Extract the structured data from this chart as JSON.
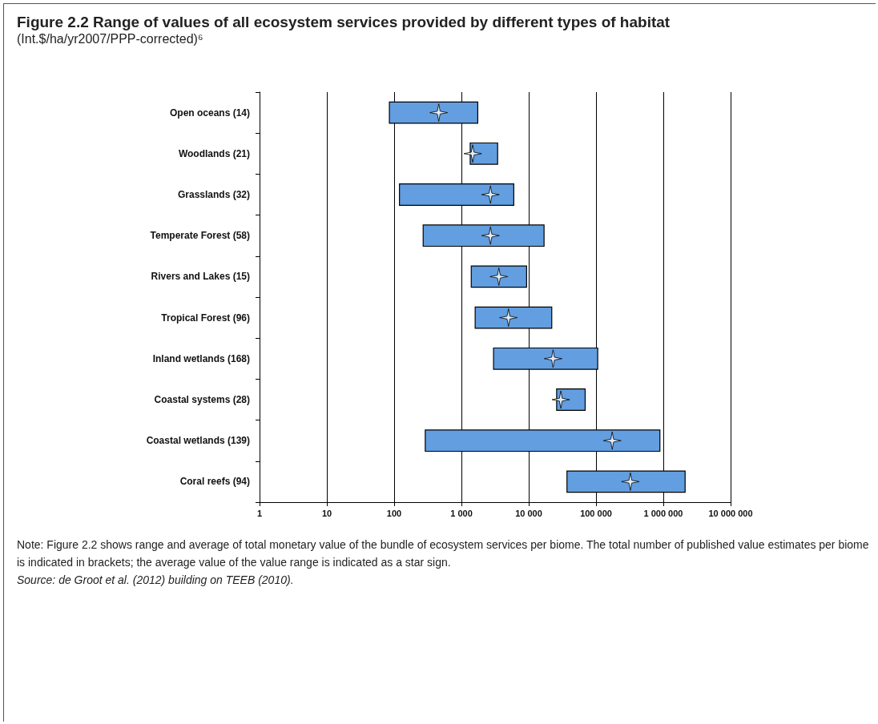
{
  "chart_data": {
    "type": "bar",
    "orientation": "horizontal",
    "title": "Figure 2.2 Range of values of all ecosystem services provided by different types of habitat",
    "subtitle": "(Int.$/ha/yr2007/PPP-corrected)⁶",
    "categories": [
      "Open oceans (14)",
      "Woodlands (21)",
      "Grasslands (32)",
      "Temperate Forest (58)",
      "Rivers and Lakes (15)",
      "Tropical Forest (96)",
      "Inland wetlands (168)",
      "Coastal systems (28)",
      "Coastal wetlands (139)",
      "Coral reefs (94)"
    ],
    "series": [
      {
        "color": "#629ee0",
        "base": [
          85,
          1350,
          120,
          270,
          1400,
          1600,
          3000,
          26000,
          290,
          37000
        ],
        "values": [
          1665,
          2100,
          5880,
          16630,
          7900,
          20400,
          103000,
          43000,
          889710,
          2073000
        ]
      },
      {
        "type": "scatter",
        "marker": "star",
        "color": "#ffffff",
        "values": [
          460,
          1470,
          2700,
          2700,
          3600,
          5000,
          23000,
          30000,
          174000,
          324000
        ]
      }
    ],
    "log": "x",
    "xlim": [
      1,
      10000000
    ],
    "xticks": [
      1,
      10,
      100,
      {
        "value": 1000,
        "label": "1 000"
      },
      {
        "value": 10000,
        "label": "10 000"
      },
      {
        "value": 100000,
        "label": "100 000"
      },
      {
        "value": 1000000,
        "label": "1 000 000"
      },
      {
        "value": 10000000,
        "label": "10 000 000"
      }
    ],
    "grid": "x",
    "annotations": [
      "Note: Figure 2.2 shows range and average of total monetary value of the bundle of ecosystem services per biome. The total number of published value estimates per biome is indicated in brackets; the average value of the value range is indicated as a star sign.",
      "Source: de Groot et al. (2012) building on TEEB (2010)."
    ]
  }
}
